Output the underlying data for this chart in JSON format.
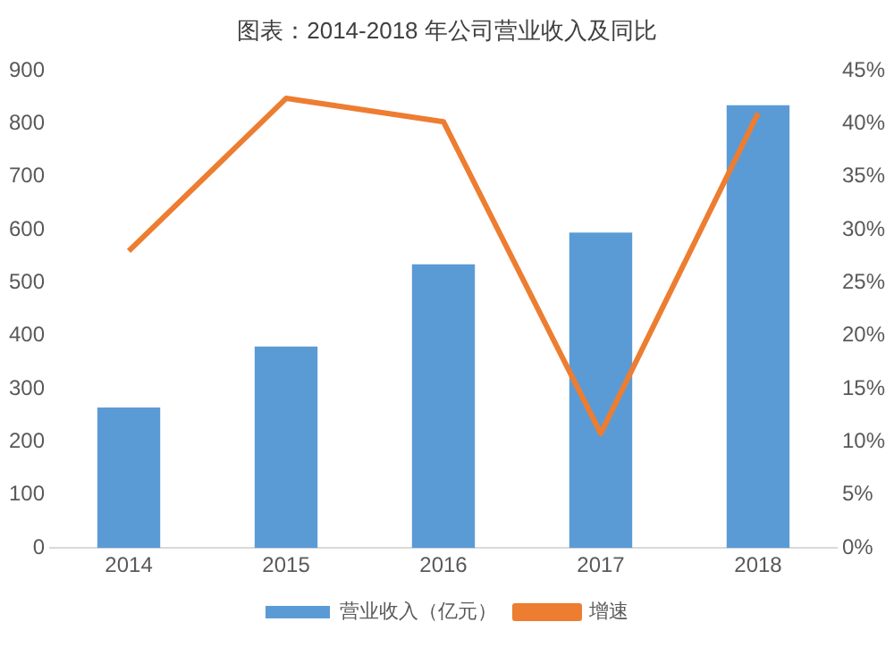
{
  "chart_data": {
    "type": "bar",
    "title": "图表：2014-2018 年公司营业收入及同比",
    "categories": [
      "2014",
      "2015",
      "2016",
      "2017",
      "2018"
    ],
    "series": [
      {
        "name": "营业收入（亿元）",
        "color": "#5b9bd5",
        "values": [
          265,
          380,
          535,
          595,
          835
        ]
      },
      {
        "name": "增速",
        "type": "line",
        "axis": "y2",
        "color": "#ed7d31",
        "values": [
          28,
          42.4,
          40.2,
          10.8,
          41
        ]
      }
    ],
    "ylim": [
      0,
      900
    ],
    "yticks": [
      0,
      100,
      200,
      300,
      400,
      500,
      600,
      700,
      800,
      900
    ],
    "y2lim": [
      0,
      45
    ],
    "y2ticks": [
      {
        "value": 0,
        "label": "0%"
      },
      {
        "value": 5,
        "label": "5%"
      },
      {
        "value": 10,
        "label": "10%"
      },
      {
        "value": 15,
        "label": "15%"
      },
      {
        "value": 20,
        "label": "20%"
      },
      {
        "value": 25,
        "label": "25%"
      },
      {
        "value": 30,
        "label": "30%"
      },
      {
        "value": 35,
        "label": "35%"
      },
      {
        "value": 40,
        "label": "40%"
      },
      {
        "value": 45,
        "label": "45%"
      }
    ],
    "grid": false,
    "legend": "bottom",
    "marker": "none"
  }
}
